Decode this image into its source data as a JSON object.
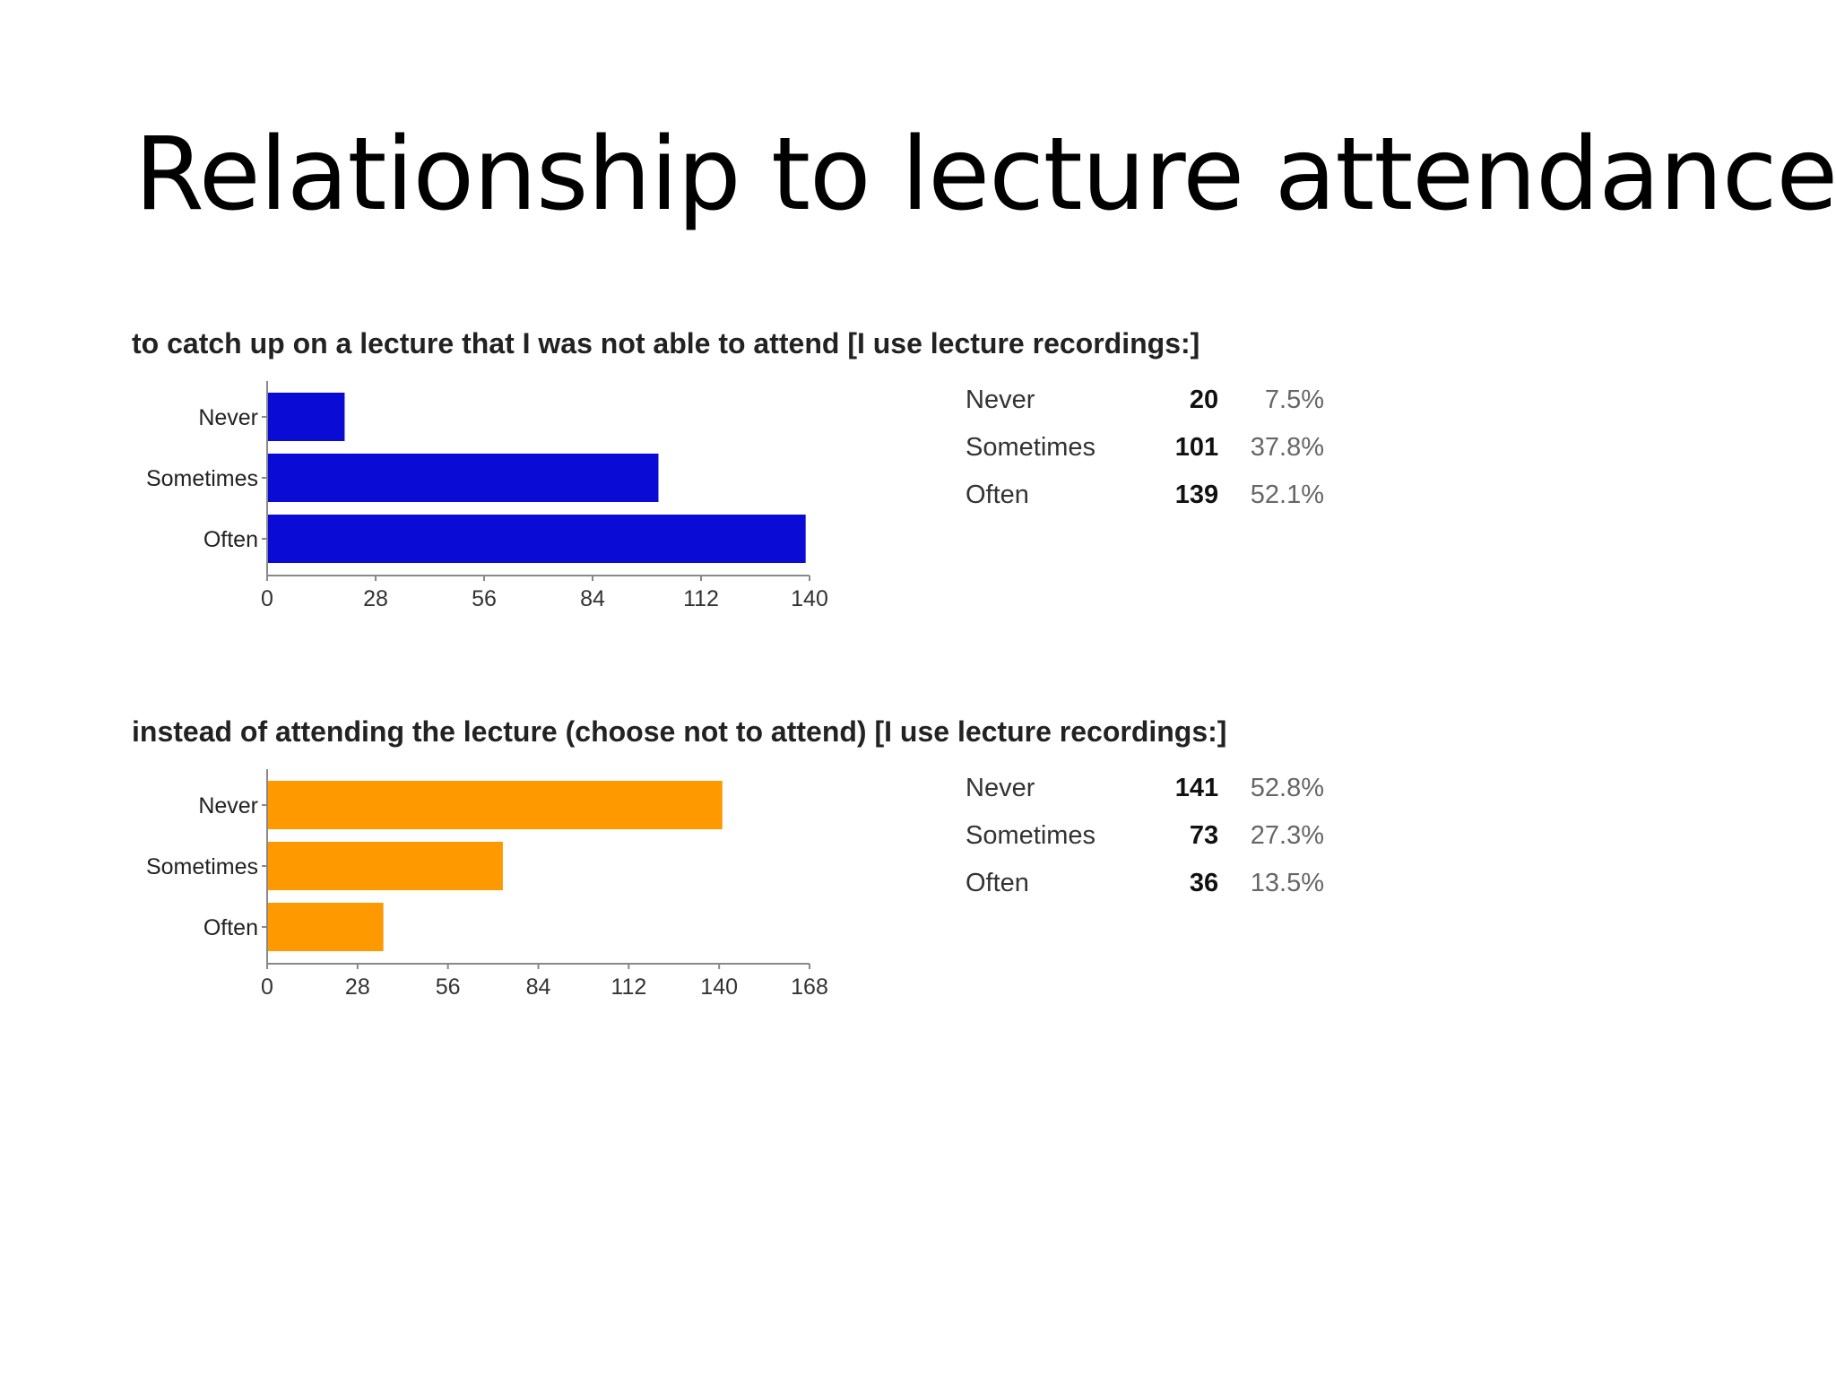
{
  "slide": {
    "title": "Relationship to lecture attendance"
  },
  "chart_data": [
    {
      "type": "bar",
      "orientation": "horizontal",
      "title": "to catch up on a lecture that I was not able to attend [I use lecture recordings:]",
      "categories": [
        "Never",
        "Sometimes",
        "Often"
      ],
      "values": [
        20,
        101,
        139
      ],
      "xlim": [
        0,
        140
      ],
      "xticks": [
        "0",
        "28",
        "56",
        "84",
        "112",
        "140"
      ],
      "color": "#0b0bd6",
      "table": [
        {
          "label": "Never",
          "count": "20",
          "percent": "7.5%"
        },
        {
          "label": "Sometimes",
          "count": "101",
          "percent": "37.8%"
        },
        {
          "label": "Often",
          "count": "139",
          "percent": "52.1%"
        }
      ]
    },
    {
      "type": "bar",
      "orientation": "horizontal",
      "title": "instead of attending the lecture (choose not to attend) [I use lecture recordings:]",
      "categories": [
        "Never",
        "Sometimes",
        "Often"
      ],
      "values": [
        141,
        73,
        36
      ],
      "xlim": [
        0,
        168
      ],
      "xticks": [
        "0",
        "28",
        "56",
        "84",
        "112",
        "140",
        "168"
      ],
      "color": "#ff9900",
      "table": [
        {
          "label": "Never",
          "count": "141",
          "percent": "52.8%"
        },
        {
          "label": "Sometimes",
          "count": "73",
          "percent": "27.3%"
        },
        {
          "label": "Often",
          "count": "36",
          "percent": "13.5%"
        }
      ]
    }
  ]
}
